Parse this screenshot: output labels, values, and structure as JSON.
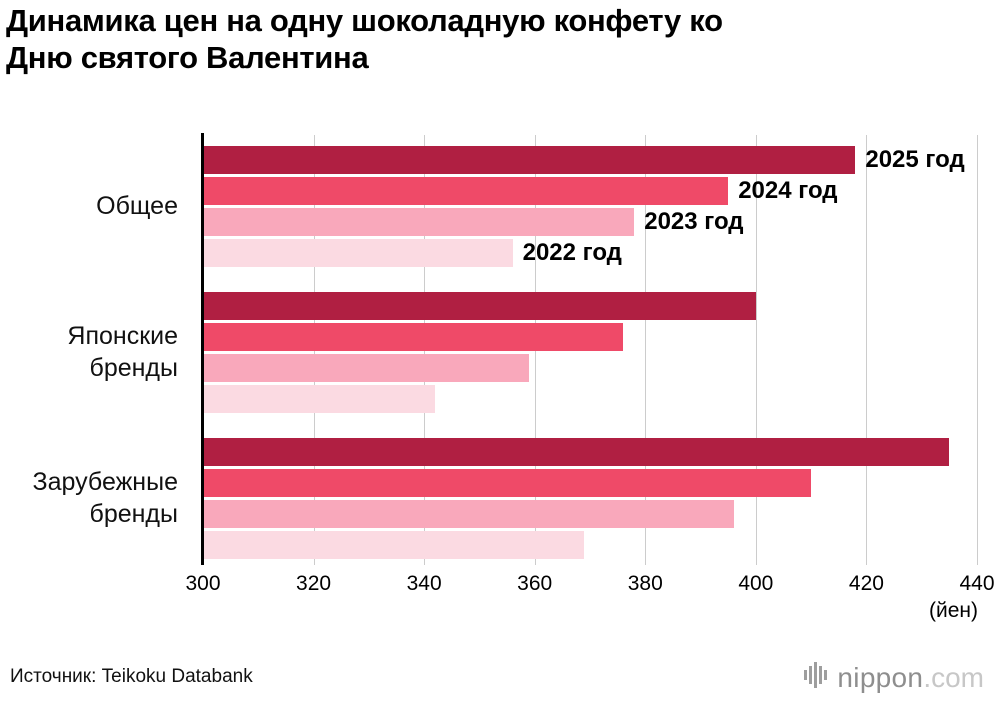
{
  "title": {
    "line1": "Динамика цен на одну шоколадную конфету ко",
    "line2": "Дню святого Валентина"
  },
  "chart_data": {
    "type": "bar",
    "orientation": "horizontal",
    "title": "Динамика цен на одну шоколадную конфету ко Дню святого Валентина",
    "categories": [
      "Общее",
      "Японские бренды",
      "Зарубежные бренды"
    ],
    "series": [
      {
        "name": "2025 год",
        "color": "#b01f42",
        "values": [
          418,
          400,
          435
        ]
      },
      {
        "name": "2024 год",
        "color": "#ef4a68",
        "values": [
          395,
          376,
          410
        ]
      },
      {
        "name": "2023 год",
        "color": "#f9a8bb",
        "values": [
          378,
          359,
          396
        ]
      },
      {
        "name": "2022 год",
        "color": "#fbdae2",
        "values": [
          356,
          342,
          369
        ]
      }
    ],
    "xlim": [
      300,
      440
    ],
    "xticks": [
      300,
      320,
      340,
      360,
      380,
      400,
      420,
      440
    ],
    "x_unit": "(йен)",
    "grid": "vertical-light-gray",
    "legend_position": "year labels to the right of bars in first group"
  },
  "source": "Источник: Teikoku Databank",
  "logo": {
    "name": "nippon",
    "tld": ".com",
    "icon": "soundwave-bars-icon"
  }
}
